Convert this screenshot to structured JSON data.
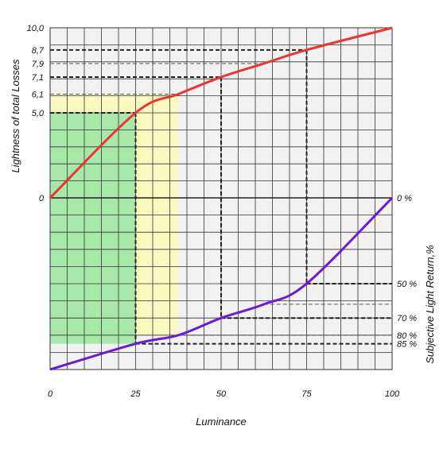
{
  "chart_data": {
    "type": "line",
    "title": "",
    "xlabel": "Luminance",
    "ylabel_left": "Lightness of total Losses",
    "ylabel_right": "Subjective Light Return,%",
    "x_ticks": [
      "0",
      "25",
      "50",
      "75",
      "100"
    ],
    "x_tick_values": [
      0,
      25,
      50,
      75,
      100
    ],
    "xlim": [
      0,
      100
    ],
    "ylim_left": [
      0,
      10
    ],
    "y_left_ticks": [
      {
        "label": "10,0",
        "value": 10.0
      },
      {
        "label": "8,7",
        "value": 8.7
      },
      {
        "label": "7,9",
        "value": 7.9
      },
      {
        "label": "7,1",
        "value": 7.1
      },
      {
        "label": "6,1",
        "value": 6.1
      },
      {
        "label": "5,0",
        "value": 5.0
      },
      {
        "label": "0",
        "value": 0
      }
    ],
    "ylim_right": [
      0,
      100
    ],
    "y_right_ticks": [
      {
        "label": "0 %",
        "value": 0
      },
      {
        "label": "50 %",
        "value": 50
      },
      {
        "label": "70 %",
        "value": 70
      },
      {
        "label": "80 %",
        "value": 80
      },
      {
        "label": "85 %",
        "value": 85
      }
    ],
    "series": [
      {
        "color": "#ee3333",
        "x": [
          0,
          25,
          37.5,
          50,
          62.5,
          75,
          100
        ],
        "y": [
          0,
          5.0,
          6.1,
          7.1,
          7.9,
          8.7,
          10.0
        ]
      },
      {
        "color": "#6a1bd8",
        "x": [
          0,
          25,
          37.5,
          50,
          62.5,
          75,
          100
        ],
        "y": [
          100,
          85,
          80,
          70,
          62,
          50,
          0
        ]
      }
    ],
    "shaded_regions": [
      {
        "x_to": 37.5,
        "left_to": 6.1,
        "right_to": 80,
        "color": "#fafac0"
      },
      {
        "x_to": 25,
        "left_to": 5.0,
        "right_to": 85,
        "color": "#a8e8a8"
      }
    ],
    "grid": true,
    "legend": "none"
  }
}
